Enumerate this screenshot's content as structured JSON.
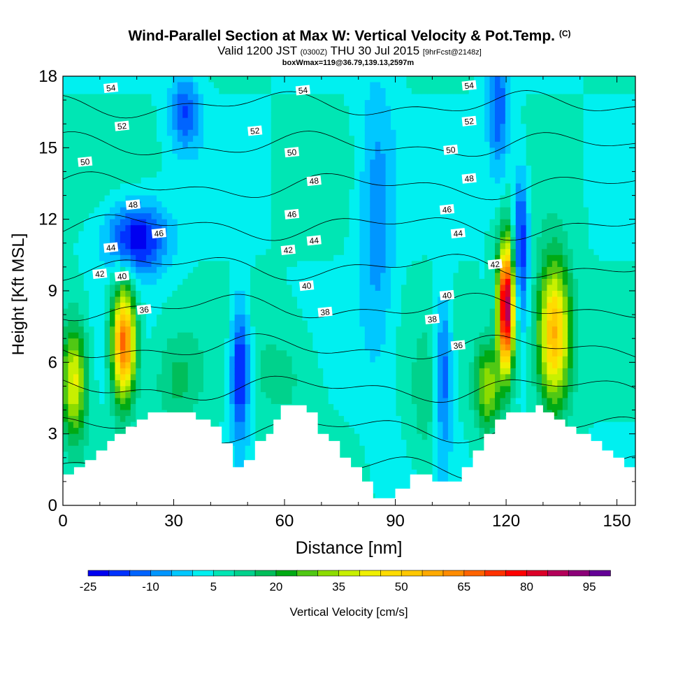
{
  "chart_data": {
    "type": "heatmap",
    "title": "Wind-Parallel Section at Max W: Vertical Velocity & Pot.Temp.",
    "title_mark": "(C)",
    "subtitle": {
      "valid": "Valid 1200 JST",
      "zulu": "(0300Z)",
      "date": "THU 30 Jul 2015",
      "forecast": "[9hrFcst@2148z]"
    },
    "box_note": "boxWmax=119@36.79,139.13,2597m",
    "xlabel": "Distance [nm]",
    "ylabel": "Height [Kft MSL]",
    "xlim": [
      0,
      155
    ],
    "ylim": [
      0,
      18
    ],
    "x_ticks": [
      "0",
      "30",
      "60",
      "90",
      "120",
      "150"
    ],
    "y_ticks": [
      "0",
      "3",
      "6",
      "9",
      "12",
      "15",
      "18"
    ],
    "colorbar": {
      "label": "Vertical Velocity [cm/s]",
      "tick_labels": [
        "-25",
        "-10",
        "5",
        "20",
        "35",
        "50",
        "65",
        "80",
        "95"
      ],
      "colors": [
        "#0000f0",
        "#0032ff",
        "#0064ff",
        "#0096ff",
        "#00c8ff",
        "#00f0f0",
        "#00e6b4",
        "#00d28c",
        "#00be5a",
        "#00aa14",
        "#50c814",
        "#8cdc00",
        "#c8f000",
        "#f0f000",
        "#ffdc00",
        "#ffc800",
        "#ffaa00",
        "#ff8c00",
        "#ff6400",
        "#ff3200",
        "#ff0000",
        "#dc0028",
        "#b4005a",
        "#8c0078",
        "#640096"
      ]
    },
    "theta_contours": [
      36,
      38,
      40,
      42,
      44,
      46,
      48,
      50,
      52,
      54
    ],
    "theta_labels": [
      {
        "v": "54",
        "x": 13,
        "y": 17.5
      },
      {
        "v": "54",
        "x": 65,
        "y": 17.4
      },
      {
        "v": "54",
        "x": 110,
        "y": 17.6
      },
      {
        "v": "52",
        "x": 16,
        "y": 15.9
      },
      {
        "v": "52",
        "x": 52,
        "y": 15.7
      },
      {
        "v": "52",
        "x": 110,
        "y": 16.1
      },
      {
        "v": "50",
        "x": 6,
        "y": 14.4
      },
      {
        "v": "50",
        "x": 62,
        "y": 14.8
      },
      {
        "v": "50",
        "x": 105,
        "y": 14.9
      },
      {
        "v": "48",
        "x": 19,
        "y": 12.6
      },
      {
        "v": "48",
        "x": 68,
        "y": 13.6
      },
      {
        "v": "48",
        "x": 110,
        "y": 13.7
      },
      {
        "v": "46",
        "x": 26,
        "y": 11.4
      },
      {
        "v": "46",
        "x": 62,
        "y": 12.2
      },
      {
        "v": "46",
        "x": 104,
        "y": 12.4
      },
      {
        "v": "44",
        "x": 13,
        "y": 10.8
      },
      {
        "v": "44",
        "x": 68,
        "y": 11.1
      },
      {
        "v": "44",
        "x": 107,
        "y": 11.4
      },
      {
        "v": "42",
        "x": 10,
        "y": 9.7
      },
      {
        "v": "42",
        "x": 61,
        "y": 10.7
      },
      {
        "v": "42",
        "x": 117,
        "y": 10.1
      },
      {
        "v": "40",
        "x": 16,
        "y": 9.6
      },
      {
        "v": "40",
        "x": 66,
        "y": 9.2
      },
      {
        "v": "40",
        "x": 104,
        "y": 8.8
      },
      {
        "v": "38",
        "x": 71,
        "y": 8.1
      },
      {
        "v": "38",
        "x": 100,
        "y": 7.8
      },
      {
        "v": "36",
        "x": 22,
        "y": 8.2
      },
      {
        "v": "36",
        "x": 107,
        "y": 6.7
      }
    ],
    "terrain": [
      {
        "x": 0,
        "z": 1.3
      },
      {
        "x": 3,
        "z": 1.6
      },
      {
        "x": 6,
        "z": 1.9
      },
      {
        "x": 9,
        "z": 2.3
      },
      {
        "x": 12,
        "z": 2.7
      },
      {
        "x": 14,
        "z": 3.0
      },
      {
        "x": 17,
        "z": 3.3
      },
      {
        "x": 20,
        "z": 3.6
      },
      {
        "x": 23,
        "z": 3.9
      },
      {
        "x": 36,
        "z": 3.6
      },
      {
        "x": 40,
        "z": 3.3
      },
      {
        "x": 43,
        "z": 2.6
      },
      {
        "x": 46,
        "z": 1.6
      },
      {
        "x": 49,
        "z": 1.9
      },
      {
        "x": 52,
        "z": 2.7
      },
      {
        "x": 55,
        "z": 3.0
      },
      {
        "x": 57,
        "z": 3.6
      },
      {
        "x": 59,
        "z": 4.2
      },
      {
        "x": 64,
        "z": 4.2
      },
      {
        "x": 66,
        "z": 3.9
      },
      {
        "x": 69,
        "z": 3.0
      },
      {
        "x": 72,
        "z": 2.7
      },
      {
        "x": 75,
        "z": 2.0
      },
      {
        "x": 78,
        "z": 1.6
      },
      {
        "x": 81,
        "z": 1.0
      },
      {
        "x": 84,
        "z": 0.3
      },
      {
        "x": 90,
        "z": 0.7
      },
      {
        "x": 94,
        "z": 1.3
      },
      {
        "x": 100,
        "z": 1.0
      },
      {
        "x": 108,
        "z": 1.6
      },
      {
        "x": 111,
        "z": 2.3
      },
      {
        "x": 114,
        "z": 3.0
      },
      {
        "x": 117,
        "z": 3.6
      },
      {
        "x": 120,
        "z": 3.9
      },
      {
        "x": 128,
        "z": 4.2
      },
      {
        "x": 130,
        "z": 3.9
      },
      {
        "x": 133,
        "z": 3.6
      },
      {
        "x": 136,
        "z": 3.3
      },
      {
        "x": 139,
        "z": 3.0
      },
      {
        "x": 143,
        "z": 2.7
      },
      {
        "x": 146,
        "z": 2.3
      },
      {
        "x": 149,
        "z": 2.0
      },
      {
        "x": 152,
        "z": 1.6
      },
      {
        "x": 155,
        "z": 1.6
      }
    ],
    "field_features": [
      {
        "kind": "updraft",
        "x": 16.5,
        "z": 6.8,
        "sx": 3.2,
        "sz": 2.4,
        "w": 70
      },
      {
        "kind": "updraft",
        "x": 3,
        "z": 5.2,
        "sx": 3.5,
        "sz": 2.4,
        "w": 42
      },
      {
        "kind": "updraft",
        "x": 120,
        "z": 8.3,
        "sx": 2.2,
        "sz": 2.6,
        "w": 95
      },
      {
        "kind": "updraft",
        "x": 115,
        "z": 5.0,
        "sx": 3.5,
        "sz": 1.8,
        "w": 35
      },
      {
        "kind": "updraft",
        "x": 133,
        "z": 7.2,
        "sx": 4.5,
        "sz": 3.0,
        "w": 58
      },
      {
        "kind": "updraft",
        "x": 60,
        "z": 5.5,
        "sx": 10,
        "sz": 2.5,
        "w": 12
      },
      {
        "kind": "updraft",
        "x": 31,
        "z": 5.2,
        "sx": 6,
        "sz": 2.0,
        "w": 16
      },
      {
        "kind": "updraft",
        "x": 98,
        "z": 4.0,
        "sx": 4,
        "sz": 3.0,
        "w": 12
      },
      {
        "kind": "downdraft",
        "x": 48,
        "z": 5.6,
        "sx": 2.6,
        "sz": 2.8,
        "w": -25
      },
      {
        "kind": "downdraft",
        "x": 20,
        "z": 11.2,
        "sx": 8,
        "sz": 1.5,
        "w": -25
      },
      {
        "kind": "downdraft",
        "x": 124,
        "z": 11.0,
        "sx": 2.0,
        "sz": 3.0,
        "w": -22
      },
      {
        "kind": "downdraft",
        "x": 103,
        "z": 5.5,
        "sx": 2.3,
        "sz": 3.5,
        "w": -15
      },
      {
        "kind": "downdraft",
        "x": 33,
        "z": 16.5,
        "sx": 4,
        "sz": 1.6,
        "w": -15
      },
      {
        "kind": "downdraft",
        "x": 118,
        "z": 16.5,
        "sx": 3,
        "sz": 3.0,
        "w": -14
      },
      {
        "kind": "downdraft",
        "x": 85,
        "z": 12.0,
        "sx": 5,
        "sz": 6.0,
        "w": -8
      }
    ]
  }
}
